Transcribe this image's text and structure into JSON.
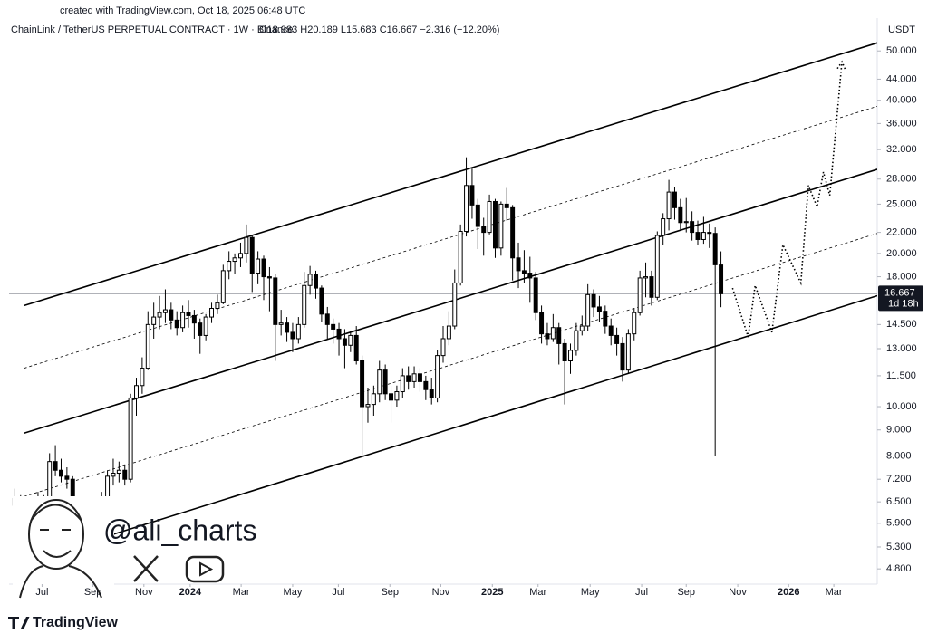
{
  "header": {
    "created": "created with TradingView.com, Oct 18, 2025 06:48 UTC",
    "symbol": "ChainLink / TetherUS PERPETUAL CONTRACT · 1W · Binance",
    "ohlc": "O18.983 H20.189 L15.683 C16.667 −2.316 (−12.20%)"
  },
  "watermark": "@ali_charts",
  "brand": "TradingView",
  "chart_data": {
    "type": "candlestick",
    "log_scale": true,
    "grid": false,
    "up_color": "#ffffff",
    "down_color": "#000000",
    "outline_color": "#000000",
    "y_unit": "USDT",
    "xlim": [
      -1,
      149
    ],
    "ylim": [
      4.48,
      58
    ],
    "xticks": [
      {
        "value": 4.7,
        "label": "Jul"
      },
      {
        "value": 13.5,
        "label": "Sep"
      },
      {
        "value": 22.3,
        "label": "Nov"
      },
      {
        "value": 30.3,
        "label": "2024"
      },
      {
        "value": 39.1,
        "label": "Mar"
      },
      {
        "value": 48.0,
        "label": "May"
      },
      {
        "value": 55.9,
        "label": "Jul"
      },
      {
        "value": 64.8,
        "label": "Sep"
      },
      {
        "value": 73.6,
        "label": "Nov"
      },
      {
        "value": 82.5,
        "label": "2025"
      },
      {
        "value": 90.4,
        "label": "Mar"
      },
      {
        "value": 99.4,
        "label": "May"
      },
      {
        "value": 108.3,
        "label": "Jul"
      },
      {
        "value": 116.0,
        "label": "Sep"
      },
      {
        "value": 124.9,
        "label": "Nov"
      },
      {
        "value": 133.7,
        "label": "2026"
      },
      {
        "value": 141.5,
        "label": "Mar"
      }
    ],
    "yticks": [
      {
        "value": 50,
        "label": "50.000"
      },
      {
        "value": 44,
        "label": "44.000"
      },
      {
        "value": 40,
        "label": "40.000"
      },
      {
        "value": 36,
        "label": "36.000"
      },
      {
        "value": 32,
        "label": "32.000"
      },
      {
        "value": 28,
        "label": "28.000"
      },
      {
        "value": 25,
        "label": "25.000"
      },
      {
        "value": 22,
        "label": "22.000"
      },
      {
        "value": 20,
        "label": "20.000"
      },
      {
        "value": 18,
        "label": "18.000"
      },
      {
        "value": 14.5,
        "label": "14.500"
      },
      {
        "value": 13,
        "label": "13.000"
      },
      {
        "value": 11.5,
        "label": "11.500"
      },
      {
        "value": 10,
        "label": "10.000"
      },
      {
        "value": 9,
        "label": "9.000"
      },
      {
        "value": 8,
        "label": "8.000"
      },
      {
        "value": 7.2,
        "label": "7.200"
      },
      {
        "value": 6.5,
        "label": "6.500"
      },
      {
        "value": 5.9,
        "label": "5.900"
      },
      {
        "value": 5.3,
        "label": "5.300"
      },
      {
        "value": 4.8,
        "label": "4.800"
      }
    ],
    "last_price": {
      "value": 16.667,
      "label": "16.667"
    },
    "countdown": "1d 18h",
    "candles": [
      [
        6.4,
        6.9,
        6.2,
        6.6
      ],
      [
        6.6,
        6.7,
        5.0,
        5.3
      ],
      [
        5.3,
        5.9,
        5.2,
        5.6
      ],
      [
        5.6,
        6.4,
        5.5,
        6.2
      ],
      [
        6.2,
        6.8,
        6.0,
        6.5
      ],
      [
        6.5,
        6.7,
        6.1,
        6.3
      ],
      [
        6.3,
        8.1,
        6.2,
        7.8
      ],
      [
        7.8,
        8.4,
        7.3,
        7.5
      ],
      [
        7.5,
        7.9,
        7.1,
        7.3
      ],
      [
        7.3,
        7.6,
        6.9,
        7.2
      ],
      [
        7.2,
        7.3,
        6.1,
        6.2
      ],
      [
        6.2,
        6.5,
        5.8,
        6.0
      ],
      [
        6.0,
        6.2,
        5.7,
        6.0
      ],
      [
        6.0,
        6.3,
        5.8,
        6.0
      ],
      [
        6.0,
        6.4,
        5.9,
        6.2
      ],
      [
        6.2,
        6.8,
        6.1,
        6.6
      ],
      [
        6.6,
        7.5,
        6.5,
        7.3
      ],
      [
        7.3,
        7.9,
        7.0,
        7.4
      ],
      [
        7.4,
        7.8,
        7.1,
        7.5
      ],
      [
        7.5,
        7.7,
        7.0,
        7.2
      ],
      [
        7.2,
        10.6,
        7.1,
        10.4
      ],
      [
        10.4,
        11.4,
        9.6,
        11.0
      ],
      [
        11.0,
        12.5,
        10.6,
        11.9
      ],
      [
        11.9,
        15.4,
        11.8,
        14.5
      ],
      [
        14.5,
        16.0,
        13.6,
        15.0
      ],
      [
        15.0,
        16.5,
        14.2,
        15.3
      ],
      [
        15.3,
        17.0,
        14.6,
        15.5
      ],
      [
        15.5,
        16.0,
        14.2,
        14.8
      ],
      [
        14.8,
        15.4,
        13.8,
        14.3
      ],
      [
        14.3,
        15.8,
        14.0,
        15.3
      ],
      [
        15.3,
        16.2,
        14.3,
        15.1
      ],
      [
        15.1,
        15.5,
        13.6,
        14.6
      ],
      [
        14.6,
        14.9,
        12.7,
        13.8
      ],
      [
        13.8,
        15.2,
        13.5,
        15.0
      ],
      [
        15.0,
        16.0,
        14.6,
        15.6
      ],
      [
        15.6,
        16.6,
        15.2,
        16.0
      ],
      [
        16.0,
        19.0,
        15.9,
        18.5
      ],
      [
        18.5,
        20.2,
        17.8,
        19.3
      ],
      [
        19.3,
        20.0,
        18.2,
        19.6
      ],
      [
        19.6,
        21.0,
        18.8,
        20.0
      ],
      [
        20.0,
        22.8,
        19.2,
        21.5
      ],
      [
        21.5,
        21.7,
        16.8,
        18.3
      ],
      [
        18.3,
        20.2,
        17.4,
        19.5
      ],
      [
        19.5,
        19.8,
        16.2,
        18.0
      ],
      [
        18.0,
        18.8,
        15.4,
        17.9
      ],
      [
        17.9,
        18.2,
        12.3,
        14.5
      ],
      [
        14.5,
        15.5,
        13.8,
        14.6
      ],
      [
        14.6,
        15.0,
        13.4,
        14.0
      ],
      [
        14.0,
        14.6,
        12.8,
        13.6
      ],
      [
        13.6,
        15.0,
        13.3,
        14.5
      ],
      [
        14.5,
        18.4,
        14.3,
        17.3
      ],
      [
        17.3,
        18.9,
        16.6,
        18.2
      ],
      [
        18.2,
        18.5,
        16.3,
        17.1
      ],
      [
        17.1,
        17.3,
        14.7,
        15.2
      ],
      [
        15.2,
        15.7,
        13.6,
        14.5
      ],
      [
        14.5,
        14.9,
        13.3,
        14.2
      ],
      [
        14.2,
        14.6,
        12.6,
        13.6
      ],
      [
        13.6,
        14.2,
        11.9,
        13.2
      ],
      [
        13.2,
        14.1,
        12.8,
        13.8
      ],
      [
        13.8,
        14.4,
        12.1,
        12.3
      ],
      [
        12.3,
        12.6,
        8.0,
        10.0
      ],
      [
        10.0,
        10.9,
        9.3,
        10.1
      ],
      [
        10.1,
        11.0,
        9.6,
        10.6
      ],
      [
        10.6,
        12.3,
        10.2,
        11.8
      ],
      [
        11.8,
        12.1,
        10.3,
        10.6
      ],
      [
        10.6,
        11.0,
        9.3,
        10.3
      ],
      [
        10.3,
        11.0,
        10.0,
        10.7
      ],
      [
        10.7,
        11.9,
        10.4,
        11.5
      ],
      [
        11.5,
        12.0,
        10.8,
        11.2
      ],
      [
        11.2,
        12.0,
        10.9,
        11.6
      ],
      [
        11.6,
        11.9,
        10.7,
        11.2
      ],
      [
        11.2,
        11.5,
        10.3,
        10.8
      ],
      [
        10.8,
        11.4,
        10.1,
        10.4
      ],
      [
        10.4,
        12.9,
        10.2,
        12.6
      ],
      [
        12.6,
        14.4,
        12.2,
        13.6
      ],
      [
        13.6,
        15.4,
        13.2,
        14.4
      ],
      [
        14.4,
        18.6,
        14.2,
        17.5
      ],
      [
        17.5,
        22.8,
        17.3,
        22.1
      ],
      [
        22.1,
        30.9,
        21.6,
        27.2
      ],
      [
        27.2,
        29.4,
        23.4,
        24.9
      ],
      [
        24.9,
        25.6,
        20.4,
        22.6
      ],
      [
        22.6,
        23.5,
        19.8,
        22.0
      ],
      [
        22.0,
        26.1,
        21.8,
        25.3
      ],
      [
        25.3,
        25.6,
        19.6,
        20.5
      ],
      [
        20.5,
        25.3,
        19.8,
        25.0
      ],
      [
        25.0,
        26.9,
        23.2,
        24.6
      ],
      [
        24.6,
        24.9,
        17.7,
        19.6
      ],
      [
        19.6,
        21.0,
        17.1,
        18.5
      ],
      [
        18.5,
        20.3,
        17.5,
        18.3
      ],
      [
        18.3,
        19.7,
        16.0,
        17.9
      ],
      [
        17.9,
        18.4,
        14.8,
        15.3
      ],
      [
        15.3,
        15.8,
        13.3,
        13.9
      ],
      [
        13.9,
        14.6,
        13.2,
        13.6
      ],
      [
        13.6,
        15.2,
        13.4,
        14.3
      ],
      [
        14.3,
        14.6,
        12.1,
        13.3
      ],
      [
        13.3,
        13.6,
        10.1,
        12.3
      ],
      [
        12.3,
        13.3,
        11.6,
        12.9
      ],
      [
        12.9,
        14.6,
        12.6,
        14.1
      ],
      [
        14.1,
        15.1,
        13.8,
        14.4
      ],
      [
        14.4,
        17.4,
        14.1,
        16.6
      ],
      [
        16.6,
        17.0,
        15.0,
        15.7
      ],
      [
        15.7,
        16.5,
        14.7,
        15.4
      ],
      [
        15.4,
        15.8,
        13.9,
        14.4
      ],
      [
        14.4,
        14.9,
        13.2,
        13.8
      ],
      [
        13.8,
        14.3,
        12.6,
        13.3
      ],
      [
        13.3,
        13.7,
        11.2,
        11.8
      ],
      [
        11.8,
        14.2,
        11.6,
        13.9
      ],
      [
        13.9,
        15.6,
        13.5,
        15.3
      ],
      [
        15.3,
        18.5,
        15.1,
        17.9
      ],
      [
        17.9,
        19.2,
        16.4,
        18.0
      ],
      [
        18.0,
        18.5,
        15.8,
        16.4
      ],
      [
        16.4,
        22.1,
        16.2,
        21.7
      ],
      [
        21.7,
        24.0,
        20.8,
        23.4
      ],
      [
        23.4,
        27.9,
        22.2,
        26.4
      ],
      [
        26.4,
        27.0,
        23.3,
        24.6
      ],
      [
        24.6,
        25.6,
        22.2,
        23.0
      ],
      [
        23.0,
        25.7,
        22.0,
        23.1
      ],
      [
        23.1,
        24.2,
        21.2,
        22.0
      ],
      [
        22.0,
        23.2,
        20.8,
        21.3
      ],
      [
        21.3,
        23.6,
        20.9,
        22.0
      ],
      [
        22.0,
        22.9,
        20.5,
        21.9
      ],
      [
        21.9,
        22.5,
        8.0,
        19.0
      ],
      [
        18.983,
        20.189,
        15.683,
        16.667
      ]
    ],
    "channel_lines": [
      {
        "x": [
          1.6,
          149.6
        ],
        "y": [
          15.8,
          52.1
        ],
        "style": "solid"
      },
      {
        "x": [
          1.6,
          149.6
        ],
        "y": [
          11.9,
          39.1
        ],
        "style": "dashed"
      },
      {
        "x": [
          1.6,
          149.6
        ],
        "y": [
          8.87,
          29.4
        ],
        "style": "solid"
      },
      {
        "x": [
          1.6,
          149.6
        ],
        "y": [
          6.66,
          22.0
        ],
        "style": "dashed"
      },
      {
        "x": [
          11.8,
          149.6
        ],
        "y": [
          5.38,
          16.6
        ],
        "style": "solid"
      }
    ],
    "projection": {
      "x": [
        124.0,
        126.7,
        127.9,
        130.8,
        132.7,
        135.8,
        137.1,
        138.6,
        139.7,
        140.8,
        142.9
      ],
      "y": [
        17.1,
        13.7,
        17.3,
        14.0,
        20.8,
        17.5,
        27.2,
        24.7,
        28.9,
        26.0,
        47.6
      ]
    }
  }
}
